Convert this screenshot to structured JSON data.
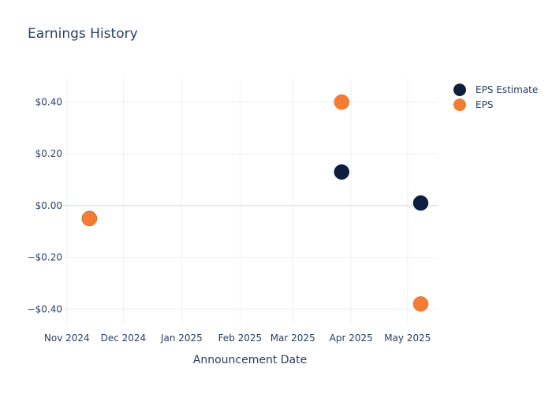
{
  "chart_data": {
    "type": "scatter",
    "title": "Earnings History",
    "xlabel": "Announcement Date",
    "ylabel": "",
    "x_ticks": [
      "Nov 2024",
      "Dec 2024",
      "Jan 2025",
      "Feb 2025",
      "Mar 2025",
      "Apr 2025",
      "May 2025"
    ],
    "x_tick_dates": [
      "2024-11-01",
      "2024-12-01",
      "2025-01-01",
      "2025-02-01",
      "2025-03-01",
      "2025-04-01",
      "2025-05-01"
    ],
    "y_ticks": [
      "−$0.40",
      "−$0.20",
      "$0.00",
      "$0.20",
      "$0.40"
    ],
    "y_tick_values": [
      -0.4,
      -0.2,
      0.0,
      0.2,
      0.4
    ],
    "xlim": [
      "2024-10-30",
      "2025-05-17"
    ],
    "ylim": [
      -0.46,
      0.49
    ],
    "grid": true,
    "legend_position": "top-right",
    "series": [
      {
        "name": "EPS Estimate",
        "color": "#0d1f3c",
        "points": [
          {
            "x": "2024-11-13",
            "y": -0.05
          },
          {
            "x": "2025-03-27",
            "y": 0.13
          },
          {
            "x": "2025-05-08",
            "y": 0.01
          }
        ]
      },
      {
        "name": "EPS",
        "color": "#f47c33",
        "points": [
          {
            "x": "2024-11-13",
            "y": -0.05
          },
          {
            "x": "2025-03-27",
            "y": 0.4
          },
          {
            "x": "2025-05-08",
            "y": -0.38
          }
        ]
      }
    ]
  }
}
